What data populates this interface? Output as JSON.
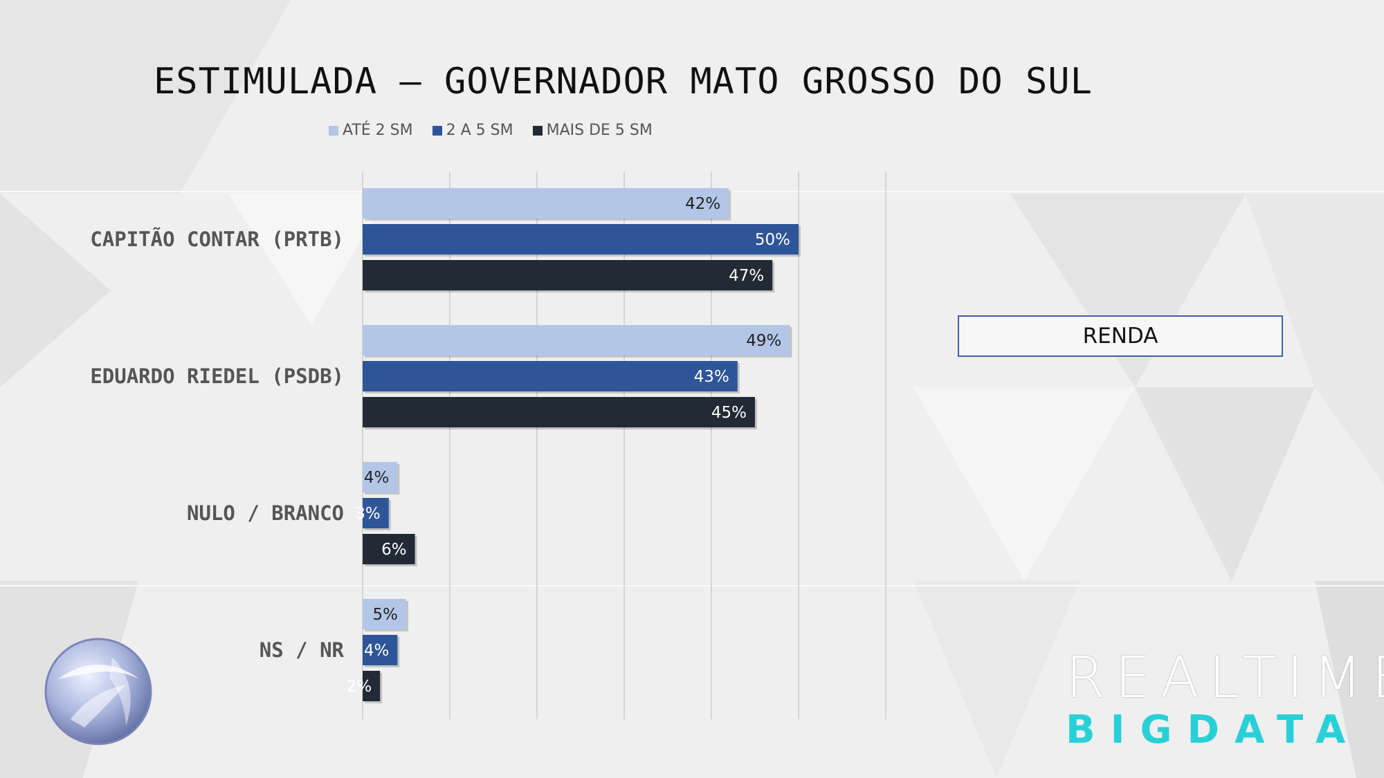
{
  "title": "ESTIMULADA – GOVERNADOR MATO GROSSO DO SUL",
  "badge": "RENDA",
  "brand": {
    "line1": "REALTIME",
    "line2": "BIGDATA"
  },
  "colors": {
    "ate2": "#b3c6e7",
    "de2a5": "#2e5597",
    "mais5": "#222a35"
  },
  "chart_data": {
    "type": "bar",
    "orientation": "horizontal",
    "categories": [
      "CAPITÃO CONTAR (PRTB)",
      "EDUARDO RIEDEL (PSDB)",
      "NULO / BRANCO",
      "NS / NR"
    ],
    "series": [
      {
        "name": "ATÉ 2 SM",
        "values": [
          42,
          49,
          4,
          5
        ],
        "labels": [
          "42%",
          "49%",
          "4%",
          "5%"
        ]
      },
      {
        "name": "2 A 5 SM",
        "values": [
          50,
          43,
          3,
          4
        ],
        "labels": [
          "50%",
          "43%",
          "3%",
          "4%"
        ]
      },
      {
        "name": "MAIS DE 5 SM",
        "values": [
          47,
          45,
          6,
          2
        ],
        "labels": [
          "47%",
          "45%",
          "6%",
          "2%"
        ]
      }
    ],
    "xlim": [
      0,
      60
    ],
    "grid": true,
    "legend": "top"
  }
}
